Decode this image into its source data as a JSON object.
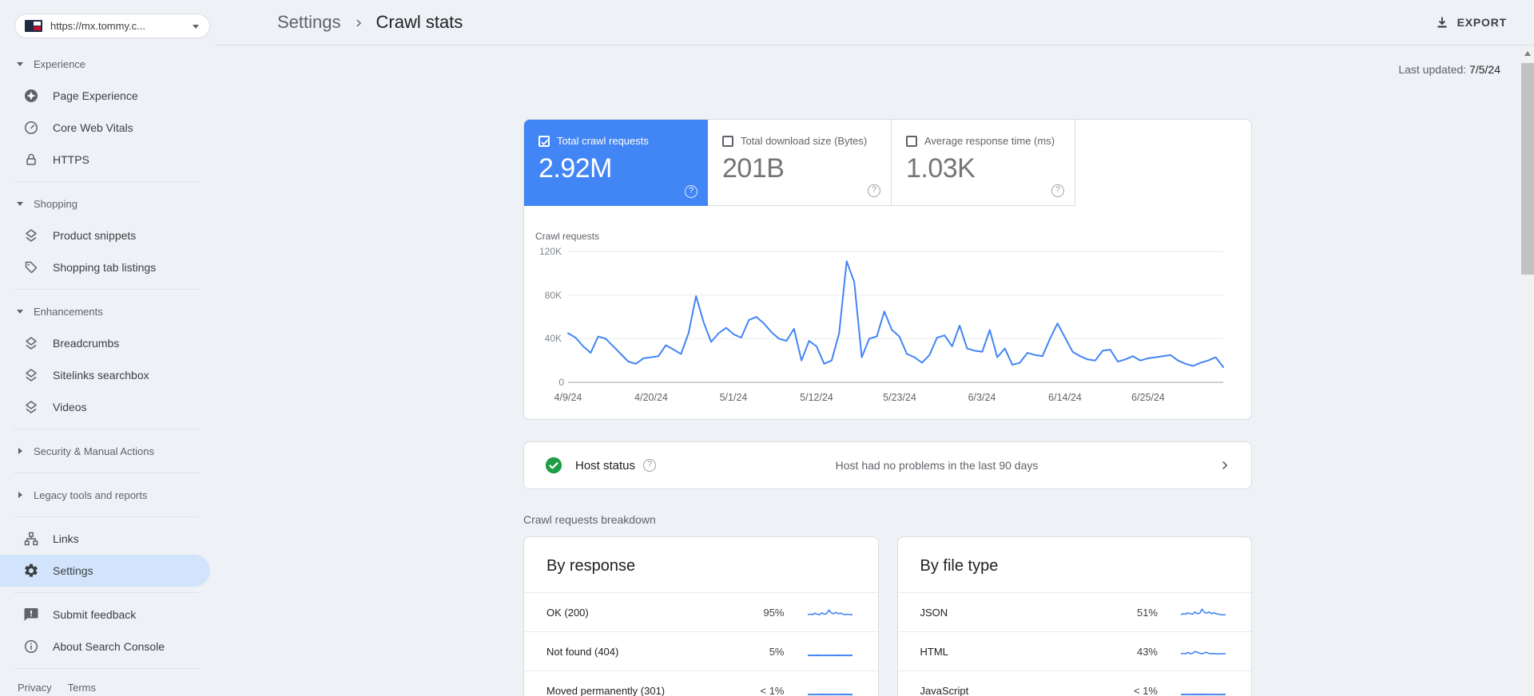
{
  "property_selector": {
    "url": "https://mx.tommy.c...",
    "flag_icon": "tommy-hilfiger-flag"
  },
  "sidebar": {
    "sections": [
      {
        "header": "Experience",
        "expanded": true,
        "items": [
          "Page Experience",
          "Core Web Vitals",
          "HTTPS"
        ]
      },
      {
        "header": "Shopping",
        "expanded": true,
        "items": [
          "Product snippets",
          "Shopping tab listings"
        ]
      },
      {
        "header": "Enhancements",
        "expanded": true,
        "items": [
          "Breadcrumbs",
          "Sitelinks searchbox",
          "Videos"
        ]
      },
      {
        "header": "Security & Manual Actions",
        "expanded": false,
        "items": []
      },
      {
        "header": "Legacy tools and reports",
        "expanded": false,
        "items": []
      }
    ],
    "tools": [
      "Links",
      "Settings"
    ],
    "selected_item": "Settings",
    "meta": [
      "Submit feedback",
      "About Search Console"
    ],
    "footer_links": [
      "Privacy",
      "Terms"
    ]
  },
  "header": {
    "breadcrumb": [
      "Settings",
      "Crawl stats"
    ],
    "export_label": "EXPORT"
  },
  "main": {
    "last_updated_label": "Last updated:",
    "last_updated_value": "7/5/24",
    "metric_cards": [
      {
        "label": "Total crawl requests",
        "value": "2.92M",
        "checked": true,
        "selected": true
      },
      {
        "label": "Total download size (Bytes)",
        "value": "201B",
        "checked": false,
        "selected": false
      },
      {
        "label": "Average response time (ms)",
        "value": "1.03K",
        "checked": false,
        "selected": false
      }
    ],
    "host_status": {
      "label": "Host status",
      "message": "Host had no problems in the last 90 days",
      "state": "ok"
    },
    "breakdown_label": "Crawl requests breakdown",
    "by_response": {
      "title": "By response",
      "rows": [
        {
          "label": "OK (200)",
          "pct": "95%",
          "spark": [
            3,
            3.5,
            3,
            4.5,
            3.5,
            3,
            5,
            3.5,
            4,
            8,
            5,
            4,
            5.5,
            4,
            4.5,
            3.5,
            3,
            3.5,
            3,
            3
          ]
        },
        {
          "label": "Not found (404)",
          "pct": "5%",
          "spark": [
            1.2,
            1.2,
            1.3,
            1.2,
            1.2,
            1.2,
            1.3,
            1.2,
            1.2,
            1.2
          ]
        },
        {
          "label": "Moved permanently (301)",
          "pct": "< 1%",
          "spark": [
            1.2,
            1.2,
            1.2,
            1.3,
            1.2,
            1.2,
            1.2,
            1.3,
            1.2,
            1.2
          ]
        }
      ]
    },
    "by_file_type": {
      "title": "By file type",
      "rows": [
        {
          "label": "JSON",
          "pct": "51%",
          "spark": [
            3,
            4,
            3.5,
            5,
            4,
            3.5,
            6,
            4,
            4.5,
            9,
            5.5,
            4.5,
            6,
            4,
            5,
            4,
            3.5,
            3,
            2.8,
            2.8
          ]
        },
        {
          "label": "HTML",
          "pct": "43%",
          "spark": [
            3,
            3.5,
            3,
            4.5,
            3,
            3.5,
            5.5,
            4.5,
            3.5,
            3,
            4,
            4.5,
            3.2,
            3,
            3.2,
            3,
            2.8,
            3,
            3,
            3
          ]
        },
        {
          "label": "JavaScript",
          "pct": "< 1%",
          "spark": [
            1.2,
            1.2,
            1.2,
            1.2,
            1.3,
            1.2,
            1.2,
            1.2,
            1.2,
            1.2
          ]
        }
      ]
    }
  },
  "chart_data": {
    "type": "line",
    "title": "Crawl requests",
    "series_name": "Total crawl requests",
    "x_ticks": [
      "4/9/24",
      "4/20/24",
      "5/1/24",
      "5/12/24",
      "5/23/24",
      "6/3/24",
      "6/14/24",
      "6/25/24"
    ],
    "y_ticks": [
      "120K",
      "80K",
      "40K",
      "0"
    ],
    "ylim": [
      0,
      120000
    ],
    "unit": "thousands of requests per day",
    "date_range": [
      "4/9/24",
      "7/5/24"
    ],
    "values_thousands": [
      45,
      41,
      33,
      27,
      42,
      40,
      33,
      26,
      19,
      17,
      22,
      23,
      24,
      34,
      30,
      26,
      45,
      79,
      55,
      37,
      45,
      50,
      44,
      41,
      57,
      60,
      54,
      46,
      40,
      38,
      49,
      20,
      38,
      33,
      17,
      20,
      45,
      111,
      92,
      23,
      40,
      42,
      65,
      48,
      42,
      26,
      23,
      18,
      25,
      41,
      43,
      33,
      52,
      31,
      29,
      28,
      48,
      23,
      31,
      16,
      18,
      27,
      25,
      24,
      40,
      54,
      41,
      28,
      24,
      21,
      20,
      29,
      30,
      19,
      21,
      24,
      20,
      22,
      23,
      24,
      25,
      20,
      17,
      15,
      18,
      20,
      23,
      14
    ],
    "legend_position": "none",
    "grid": true
  },
  "colors": {
    "accent_blue": "#4285f4",
    "selected_card_bg": "#4285f4",
    "host_ok_green": "#1e9e44",
    "selected_nav_bg": "#d2e3fc",
    "page_bg": "#eef1f5",
    "card_border": "#dadce0"
  }
}
